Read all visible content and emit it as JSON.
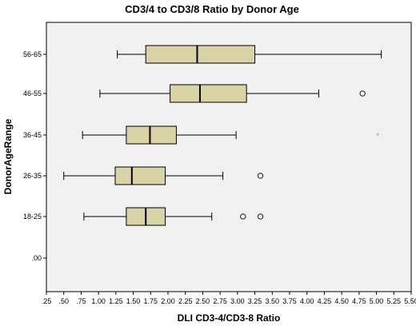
{
  "chart_data": {
    "type": "boxplot",
    "orientation": "horizontal",
    "title": "CD3/4 to CD3/8 Ratio by Donor Age",
    "xlabel": "DLI CD3-4/CD3-8 Ratio",
    "ylabel": "DonorAgeRange",
    "xlim": [
      0.25,
      5.5
    ],
    "x_ticks": [
      ".25",
      ".50",
      ".75",
      "1.00",
      "1.25",
      "1.50",
      "1.75",
      "2.00",
      "2.25",
      "2.50",
      "2.75",
      "3.00",
      "3.25",
      "3.50",
      "3.75",
      "4.00",
      "4.25",
      "4.50",
      "4.75",
      "5.00",
      "5.25",
      "5.50"
    ],
    "x_tick_values": [
      0.25,
      0.5,
      0.75,
      1.0,
      1.25,
      1.5,
      1.75,
      2.0,
      2.25,
      2.5,
      2.75,
      3.0,
      3.25,
      3.5,
      3.75,
      4.0,
      4.25,
      4.5,
      4.75,
      5.0,
      5.25,
      5.5
    ],
    "categories": [
      "56-65",
      "46-55",
      "36-45",
      "26-35",
      "18-25",
      ".00"
    ],
    "boxes": [
      {
        "category": "56-65",
        "whisker_low": 1.27,
        "q1": 1.68,
        "median": 2.42,
        "q3": 3.25,
        "whisker_high": 5.07,
        "outliers": [],
        "extremes": []
      },
      {
        "category": "46-55",
        "whisker_low": 1.02,
        "q1": 2.03,
        "median": 2.46,
        "q3": 3.13,
        "whisker_high": 4.17,
        "outliers": [
          4.8
        ],
        "extremes": []
      },
      {
        "category": "36-45",
        "whisker_low": 0.77,
        "q1": 1.4,
        "median": 1.74,
        "q3": 2.12,
        "whisker_high": 2.98,
        "outliers": [],
        "extremes": [
          5.02
        ]
      },
      {
        "category": "26-35",
        "whisker_low": 0.5,
        "q1": 1.24,
        "median": 1.48,
        "q3": 1.96,
        "whisker_high": 2.79,
        "outliers": [
          3.33
        ],
        "extremes": []
      },
      {
        "category": "18-25",
        "whisker_low": 0.79,
        "q1": 1.4,
        "median": 1.68,
        "q3": 1.96,
        "whisker_high": 2.63,
        "outliers": [
          3.08,
          3.33
        ],
        "extremes": []
      },
      {
        "category": ".00",
        "whisker_low": null,
        "q1": null,
        "median": null,
        "q3": null,
        "whisker_high": null,
        "outliers": [],
        "extremes": []
      }
    ],
    "grid": false,
    "colors": {
      "box_fill": "#d9d3a6",
      "box_stroke": "#000000",
      "plot_bg": "#f1f1f1",
      "frame": "#000000",
      "outlier": "#333333",
      "extreme": "#999999"
    }
  }
}
